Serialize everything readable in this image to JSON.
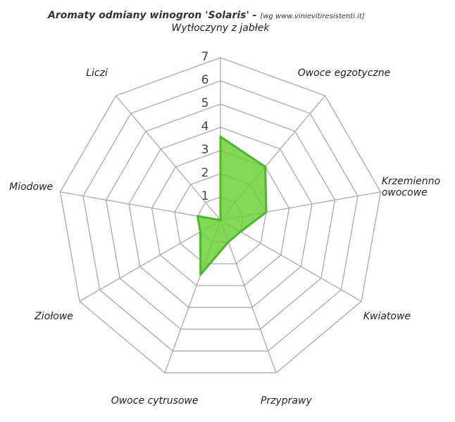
{
  "chart_data": {
    "type": "radar",
    "title": "Aromaty odmiany winogron 'Solaris' -",
    "source": "[wg www.vinievitiresistenti.it]",
    "categories": [
      "Wytłoczyny z jabłek",
      "Owoce egzotyczne",
      "Krzemienno owocowe",
      "Kwiatowe",
      "Przyprawy",
      "Owoce cytrusowe",
      "Ziołowe",
      "Miodowe",
      "Liczi"
    ],
    "series": [
      {
        "name": "Solaris",
        "color": "#6fd13a",
        "values": [
          3.6,
          3,
          2,
          1,
          1,
          2.5,
          1,
          1,
          0
        ]
      }
    ],
    "rlim": [
      0,
      7
    ],
    "rticks": [
      1,
      2,
      3,
      4,
      5,
      6,
      7
    ],
    "grid": true
  }
}
